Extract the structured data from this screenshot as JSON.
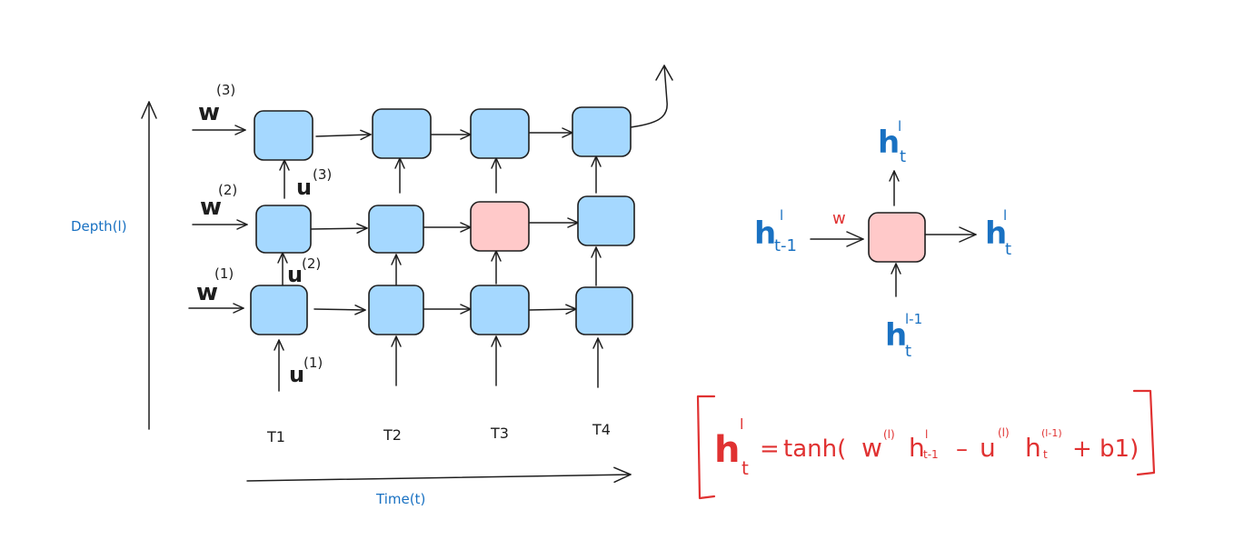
{
  "colors": {
    "cell_default": "#a5d8ff",
    "cell_highlight": "#ffc9c9",
    "ink": "#1e1e1e",
    "blue_text": "#1971c2",
    "red_text": "#e03131"
  },
  "grid": {
    "time_labels": [
      "T1",
      "T2",
      "T3",
      "T4"
    ],
    "weight_labels": [
      {
        "base": "w",
        "sup": "(3)"
      },
      {
        "base": "w",
        "sup": "(2)"
      },
      {
        "base": "w",
        "sup": "(1)"
      }
    ],
    "vertical_labels": [
      {
        "base": "u",
        "sup": "(3)"
      },
      {
        "base": "u",
        "sup": "(2)"
      },
      {
        "base": "u",
        "sup": "(1)"
      }
    ],
    "highlighted_cell": "layer 2, T3"
  },
  "axes": {
    "depth_label": "Depth(l)",
    "time_label": "Time(t)"
  },
  "cell_detail": {
    "input_left": {
      "base": "h",
      "sup": "l",
      "sub": "t-1"
    },
    "weight": "w",
    "output_right": {
      "base": "h",
      "sup": "l",
      "sub": "t"
    },
    "output_top": {
      "base": "h",
      "sup": "l",
      "sub": "t"
    },
    "input_bottom": {
      "base": "h",
      "sup": "l-1",
      "sub": "t"
    }
  },
  "equation": {
    "lhs": {
      "base": "h",
      "sup": "l",
      "sub": "t"
    },
    "equals": "=",
    "func": "tanh(",
    "term1_w": {
      "base": "w",
      "sup": "(l)"
    },
    "term1_h": {
      "base": "h",
      "sup": "l",
      "sub": "t-1"
    },
    "op": "–",
    "term2_u": {
      "base": "u",
      "sup": "(l)"
    },
    "term2_h": {
      "base": "h",
      "sup": "(l-1)",
      "sub": "t"
    },
    "tail": "+ b1)"
  }
}
